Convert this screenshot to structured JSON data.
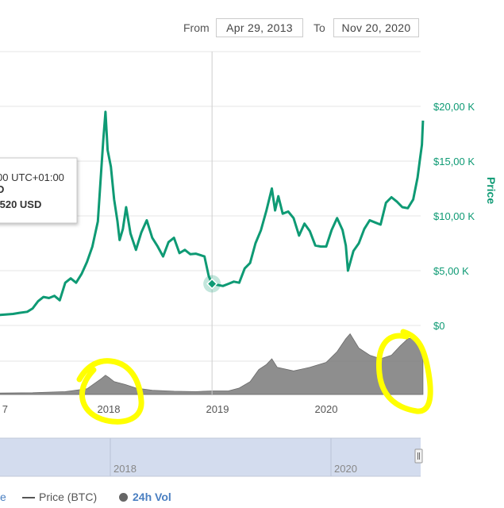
{
  "range": {
    "from_label": "From",
    "from_value": "Apr 29, 2013",
    "to_label": "To",
    "to_value": "Nov 20, 2020"
  },
  "tooltip": {
    "time": "00 UTC+01:00",
    "line2": "D",
    "line3": ".520 USD"
  },
  "legend": {
    "clipped": "e",
    "btc_label": "Price (BTC)",
    "vol_label": "24h Vol"
  },
  "colors": {
    "price": "#0e9a74",
    "volume": "#7a7a7a",
    "grid": "#e6e6e6",
    "navigator": "#d3dcee",
    "highlight": "#ffff00"
  },
  "chart_data": {
    "type": "line",
    "y_axis_title": "Price",
    "y_ticks": [
      "$0",
      "$5,00 K",
      "$10,00 K",
      "$15,00 K",
      "$20,00 K"
    ],
    "y_tick_values": [
      0,
      5000,
      10000,
      15000,
      20000
    ],
    "x_ticks": [
      "7",
      "2018",
      "2019",
      "2020"
    ],
    "x_tick_values": [
      2017.0,
      2018.0,
      2019.0,
      2020.0
    ],
    "navigator_ticks": [
      "2018",
      "2020"
    ],
    "navigator_tick_values": [
      2018.0,
      2020.0
    ],
    "crosshair_x": 2018.95,
    "marker": {
      "x": 2018.95,
      "y": 3800
    },
    "series": [
      {
        "name": "Price",
        "points": [
          [
            2016.78,
            610
          ],
          [
            2016.85,
            700
          ],
          [
            2016.92,
            760
          ],
          [
            2017.0,
            960
          ],
          [
            2017.05,
            1000
          ],
          [
            2017.12,
            1050
          ],
          [
            2017.18,
            1150
          ],
          [
            2017.25,
            1250
          ],
          [
            2017.3,
            1550
          ],
          [
            2017.35,
            2200
          ],
          [
            2017.4,
            2600
          ],
          [
            2017.45,
            2500
          ],
          [
            2017.5,
            2700
          ],
          [
            2017.55,
            2300
          ],
          [
            2017.6,
            3900
          ],
          [
            2017.65,
            4300
          ],
          [
            2017.7,
            3900
          ],
          [
            2017.75,
            4700
          ],
          [
            2017.8,
            5800
          ],
          [
            2017.85,
            7200
          ],
          [
            2017.9,
            9500
          ],
          [
            2017.93,
            14000
          ],
          [
            2017.95,
            17000
          ],
          [
            2017.97,
            19500
          ],
          [
            2017.99,
            16000
          ],
          [
            2018.02,
            14500
          ],
          [
            2018.05,
            11500
          ],
          [
            2018.08,
            9500
          ],
          [
            2018.1,
            7800
          ],
          [
            2018.13,
            8800
          ],
          [
            2018.16,
            10800
          ],
          [
            2018.2,
            8400
          ],
          [
            2018.25,
            6900
          ],
          [
            2018.3,
            8500
          ],
          [
            2018.35,
            9600
          ],
          [
            2018.4,
            8000
          ],
          [
            2018.45,
            7200
          ],
          [
            2018.5,
            6300
          ],
          [
            2018.55,
            7600
          ],
          [
            2018.6,
            8000
          ],
          [
            2018.65,
            6600
          ],
          [
            2018.7,
            6900
          ],
          [
            2018.75,
            6500
          ],
          [
            2018.8,
            6550
          ],
          [
            2018.85,
            6400
          ],
          [
            2018.88,
            6300
          ],
          [
            2018.92,
            4500
          ],
          [
            2018.95,
            3800
          ],
          [
            2019.0,
            3700
          ],
          [
            2019.05,
            3600
          ],
          [
            2019.1,
            3800
          ],
          [
            2019.15,
            4000
          ],
          [
            2019.2,
            3900
          ],
          [
            2019.25,
            5200
          ],
          [
            2019.3,
            5700
          ],
          [
            2019.35,
            7500
          ],
          [
            2019.4,
            8700
          ],
          [
            2019.45,
            10500
          ],
          [
            2019.5,
            12500
          ],
          [
            2019.53,
            10500
          ],
          [
            2019.56,
            11800
          ],
          [
            2019.6,
            10200
          ],
          [
            2019.65,
            10400
          ],
          [
            2019.7,
            9800
          ],
          [
            2019.75,
            8200
          ],
          [
            2019.8,
            9300
          ],
          [
            2019.85,
            8600
          ],
          [
            2019.9,
            7300
          ],
          [
            2019.95,
            7200
          ],
          [
            2020.0,
            7200
          ],
          [
            2020.05,
            8700
          ],
          [
            2020.1,
            9800
          ],
          [
            2020.15,
            8700
          ],
          [
            2020.18,
            7300
          ],
          [
            2020.2,
            5000
          ],
          [
            2020.25,
            6800
          ],
          [
            2020.3,
            7500
          ],
          [
            2020.35,
            8800
          ],
          [
            2020.4,
            9600
          ],
          [
            2020.45,
            9400
          ],
          [
            2020.5,
            9200
          ],
          [
            2020.55,
            11200
          ],
          [
            2020.6,
            11700
          ],
          [
            2020.65,
            11300
          ],
          [
            2020.7,
            10800
          ],
          [
            2020.75,
            10700
          ],
          [
            2020.8,
            11500
          ],
          [
            2020.84,
            13500
          ],
          [
            2020.86,
            15000
          ],
          [
            2020.88,
            16500
          ],
          [
            2020.89,
            18700
          ]
        ]
      },
      {
        "name": "24h Vol",
        "type": "area",
        "points": [
          [
            2016.78,
            1.5
          ],
          [
            2017.0,
            2
          ],
          [
            2017.3,
            2.5
          ],
          [
            2017.6,
            4
          ],
          [
            2017.8,
            8
          ],
          [
            2017.93,
            22
          ],
          [
            2017.97,
            27
          ],
          [
            2018.0,
            24
          ],
          [
            2018.05,
            18
          ],
          [
            2018.15,
            14
          ],
          [
            2018.25,
            9
          ],
          [
            2018.4,
            6
          ],
          [
            2018.6,
            4.5
          ],
          [
            2018.8,
            4
          ],
          [
            2018.95,
            5
          ],
          [
            2019.1,
            5
          ],
          [
            2019.2,
            9
          ],
          [
            2019.3,
            18
          ],
          [
            2019.38,
            35
          ],
          [
            2019.45,
            42
          ],
          [
            2019.5,
            50
          ],
          [
            2019.55,
            38
          ],
          [
            2019.7,
            33
          ],
          [
            2019.85,
            38
          ],
          [
            2020.0,
            45
          ],
          [
            2020.1,
            60
          ],
          [
            2020.18,
            78
          ],
          [
            2020.22,
            85
          ],
          [
            2020.3,
            65
          ],
          [
            2020.4,
            55
          ],
          [
            2020.5,
            50
          ],
          [
            2020.6,
            55
          ],
          [
            2020.68,
            68
          ],
          [
            2020.75,
            78
          ],
          [
            2020.82,
            80
          ],
          [
            2020.89,
            68
          ]
        ]
      }
    ]
  }
}
